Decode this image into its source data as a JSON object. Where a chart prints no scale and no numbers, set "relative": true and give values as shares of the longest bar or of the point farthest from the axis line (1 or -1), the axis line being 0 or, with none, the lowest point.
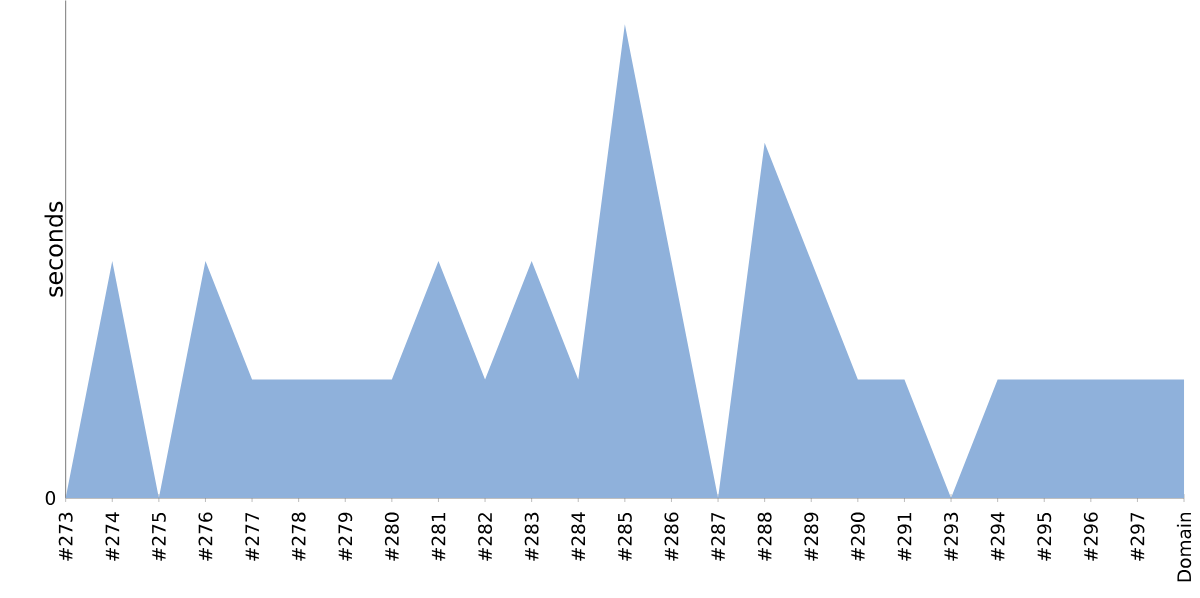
{
  "chart_data": {
    "type": "area",
    "ylabel": "seconds",
    "relative": true,
    "color": "#8fb1db",
    "categories": [
      "#273",
      "#274",
      "#275",
      "#276",
      "#277",
      "#278",
      "#279",
      "#280",
      "#281",
      "#282",
      "#283",
      "#284",
      "#285",
      "#286",
      "#287",
      "#288",
      "#289",
      "#290",
      "#291",
      "#293",
      "#294",
      "#295",
      "#296",
      "#297",
      "Domain"
    ],
    "values": [
      0,
      0.5,
      0,
      0.5,
      0.25,
      0.25,
      0.25,
      0.25,
      0.5,
      0.25,
      0.5,
      0.25,
      1,
      0.5,
      0,
      0.75,
      0.5,
      0.25,
      0.25,
      0,
      0.25,
      0.25,
      0.25,
      0.25,
      0.25
    ],
    "annotations": [
      "0"
    ]
  }
}
